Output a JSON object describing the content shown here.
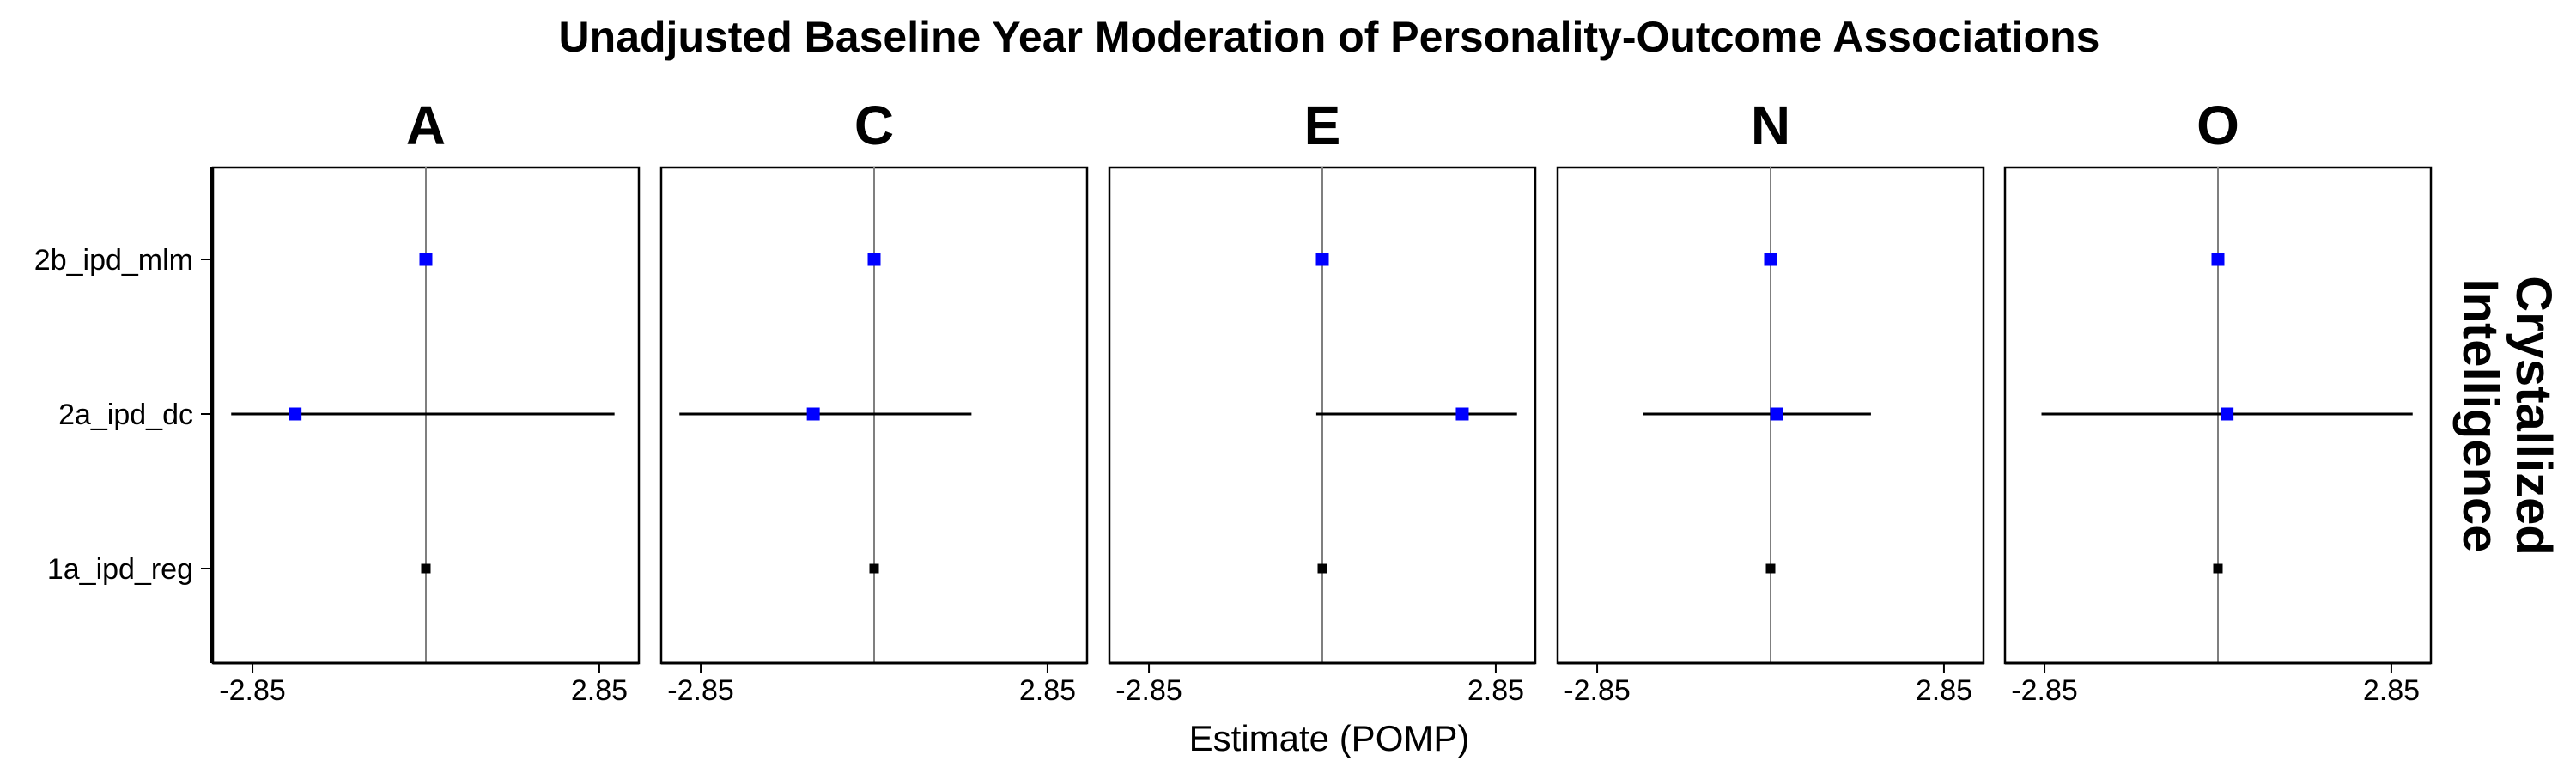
{
  "chart_data": {
    "type": "forest",
    "title": "Unadjusted Baseline Year Moderation of Personality-Outcome Associations",
    "xlabel": "Estimate (POMP)",
    "facet_label": "Crystallized\nIntelligence",
    "x_ticks": [
      -2.85,
      2.85
    ],
    "x_tick_labels": [
      "-2.85",
      "2.85"
    ],
    "xlim": [
      -3.5,
      3.5
    ],
    "reference_line": 0,
    "categories": [
      "2b_ipd_mlm",
      "2a_ipd_dc",
      "1a_ipd_reg"
    ],
    "panels": [
      {
        "name": "A",
        "estimates": [
          {
            "category": "2b_ipd_mlm",
            "value": 0.0,
            "color": "#0000ff"
          },
          {
            "category": "2a_ipd_dc",
            "value": -2.15,
            "lower": -3.2,
            "upper": 3.1,
            "color": "#0000ff"
          },
          {
            "category": "1a_ipd_reg",
            "value": 0.0,
            "color": "#000000"
          }
        ]
      },
      {
        "name": "C",
        "estimates": [
          {
            "category": "2b_ipd_mlm",
            "value": 0.0,
            "color": "#0000ff"
          },
          {
            "category": "2a_ipd_dc",
            "value": -1.0,
            "lower": -3.2,
            "upper": 1.6,
            "color": "#0000ff"
          },
          {
            "category": "1a_ipd_reg",
            "value": 0.0,
            "color": "#000000"
          }
        ]
      },
      {
        "name": "E",
        "estimates": [
          {
            "category": "2b_ipd_mlm",
            "value": 0.0,
            "color": "#0000ff"
          },
          {
            "category": "2a_ipd_dc",
            "value": 2.3,
            "lower": -0.1,
            "upper": 3.2,
            "color": "#0000ff"
          },
          {
            "category": "1a_ipd_reg",
            "value": 0.0,
            "color": "#000000"
          }
        ]
      },
      {
        "name": "N",
        "estimates": [
          {
            "category": "2b_ipd_mlm",
            "value": 0.0,
            "color": "#0000ff"
          },
          {
            "category": "2a_ipd_dc",
            "value": 0.1,
            "lower": -2.1,
            "upper": 1.65,
            "color": "#0000ff"
          },
          {
            "category": "1a_ipd_reg",
            "value": 0.0,
            "color": "#000000"
          }
        ]
      },
      {
        "name": "O",
        "estimates": [
          {
            "category": "2b_ipd_mlm",
            "value": 0.0,
            "color": "#0000ff"
          },
          {
            "category": "2a_ipd_dc",
            "value": 0.15,
            "lower": -2.9,
            "upper": 3.2,
            "color": "#0000ff"
          },
          {
            "category": "1a_ipd_reg",
            "value": 0.0,
            "color": "#000000"
          }
        ]
      }
    ],
    "grid": false,
    "legend": "none",
    "colors": {
      "highlight": "#0000ff",
      "base": "#000000",
      "reference": "#7f7f7f"
    }
  }
}
